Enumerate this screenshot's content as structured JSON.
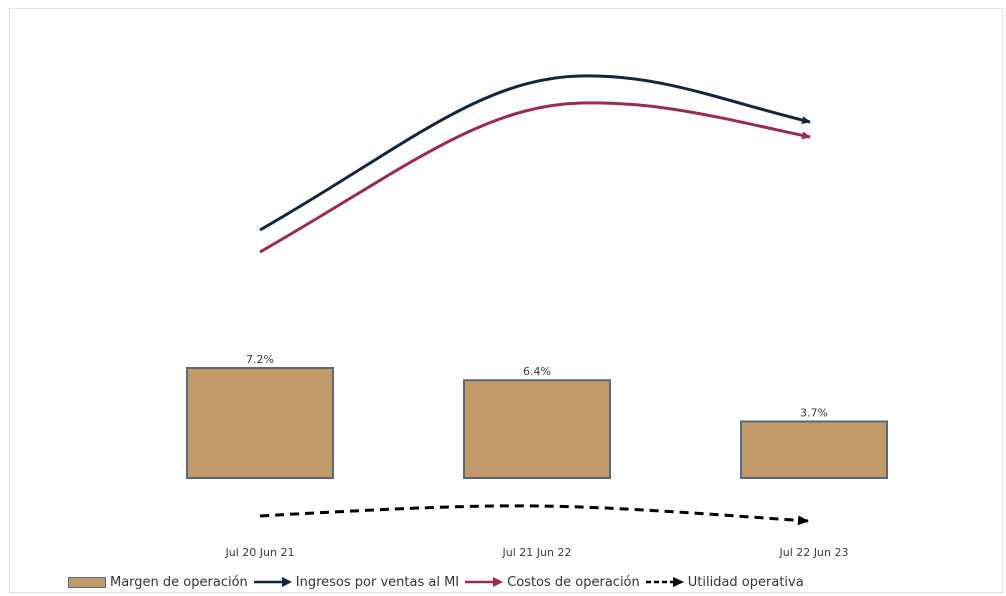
{
  "chart_data": {
    "type": "bar",
    "categories": [
      "Jul 20 Jun 21",
      "Jul 21 Jun 22",
      "Jul 22 Jun 23"
    ],
    "series": [
      {
        "name": "Margen de operación",
        "kind": "bar",
        "values": [
          7.2,
          6.4,
          3.7
        ],
        "labels": [
          "7.2%",
          "6.4%",
          "3.7%"
        ],
        "color": "#c09a67",
        "edge": "#59687a"
      },
      {
        "name": "Ingresos por ventas al MI",
        "kind": "trend-arrow",
        "color": "#13263f"
      },
      {
        "name": "Costos de operación",
        "kind": "trend-arrow",
        "color": "#9a2a55"
      },
      {
        "name": "Utilidad operativa",
        "kind": "trend-arrow-dashed",
        "color": "#000000"
      }
    ],
    "ylim": [
      0,
      8
    ],
    "grid": false,
    "legend_position": "bottom"
  }
}
